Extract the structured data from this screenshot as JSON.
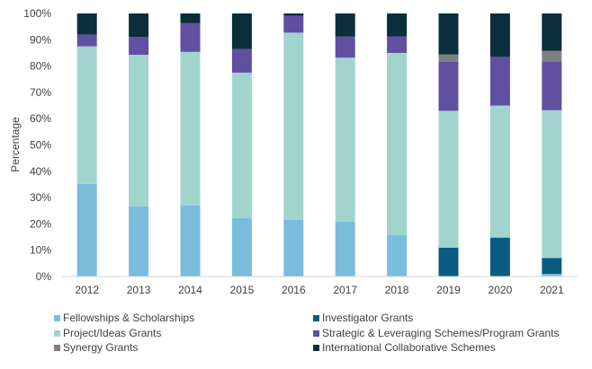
{
  "chart_data": {
    "type": "bar",
    "stacked": "percent",
    "ylabel": "Percentage",
    "xlabel": "",
    "ylim": [
      0,
      100
    ],
    "y_ticks": [
      "0%",
      "10%",
      "20%",
      "30%",
      "40%",
      "50%",
      "60%",
      "70%",
      "80%",
      "90%",
      "100%"
    ],
    "categories": [
      "2012",
      "2013",
      "2014",
      "2015",
      "2016",
      "2017",
      "2018",
      "2019",
      "2020",
      "2021"
    ],
    "series": [
      {
        "name": "Fellowships & Scholarships",
        "color": "#7ABCDC",
        "values": [
          35.2,
          26.7,
          27.0,
          22.2,
          21.6,
          20.8,
          15.7,
          0,
          0,
          1.0
        ]
      },
      {
        "name": "Investigator Grants",
        "color": "#0A5C82",
        "values": [
          0,
          0,
          0,
          0,
          0,
          0,
          0,
          11.0,
          14.8,
          6.0
        ]
      },
      {
        "name": "Project/Ideas Grants",
        "color": "#A2D4CE",
        "values": [
          52.3,
          57.6,
          58.4,
          55.3,
          71.1,
          62.4,
          69.3,
          52.0,
          50.2,
          56.2
        ]
      },
      {
        "name": "Strategic & Leveraging Schemes/Program Grants",
        "color": "#6150A0",
        "values": [
          4.5,
          6.8,
          10.9,
          9.0,
          6.4,
          8.1,
          6.3,
          18.7,
          18.5,
          18.6
        ]
      },
      {
        "name": "Synergy Grants",
        "color": "#7F7F7F",
        "values": [
          0,
          0,
          0,
          0,
          0,
          0,
          0,
          2.7,
          0,
          4.0
        ]
      },
      {
        "name": "International Collaborative Schemes",
        "color": "#0A2E3C",
        "values": [
          8.0,
          8.9,
          3.7,
          13.5,
          0.9,
          8.7,
          8.7,
          15.6,
          16.5,
          14.2
        ]
      }
    ],
    "legend_position": "bottom",
    "grid": false
  }
}
